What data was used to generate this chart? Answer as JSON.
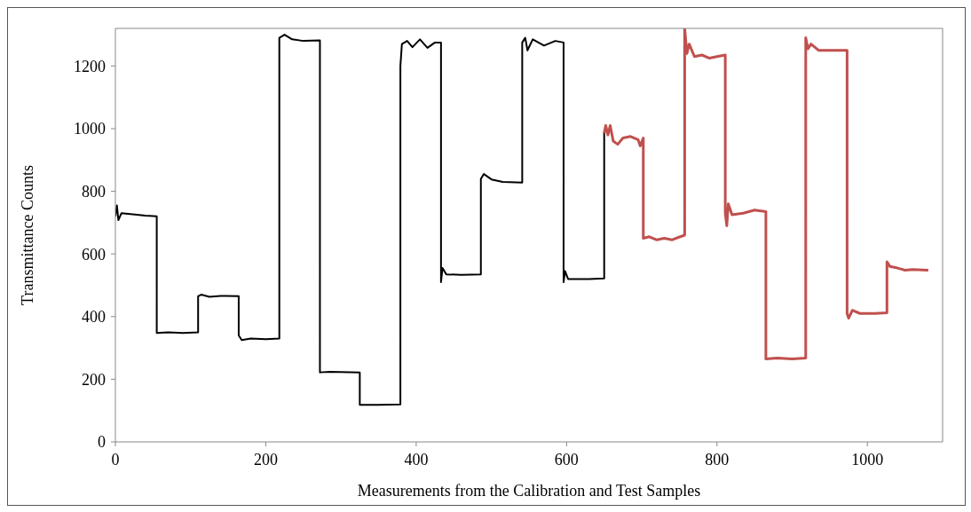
{
  "chart_data": {
    "type": "line",
    "xlabel": "Measurements from the Calibration and Test Samples",
    "ylabel": "Transmittance Counts",
    "xlim": [
      0,
      1100
    ],
    "xticks": [
      0,
      200,
      400,
      600,
      800,
      1000
    ],
    "ylim": [
      0,
      1320
    ],
    "yticks": [
      0,
      200,
      400,
      600,
      800,
      1000,
      1200
    ],
    "marker": "none",
    "line_style": "solid",
    "series": [
      {
        "color": "#000000",
        "x": [
          0,
          2,
          4,
          8,
          20,
          40,
          55,
          55,
          70,
          90,
          110,
          110,
          114,
          125,
          140,
          164,
          164,
          168,
          180,
          200,
          218,
          218,
          225,
          235,
          250,
          272,
          272,
          285,
          325,
          325,
          350,
          379,
          379,
          381,
          388,
          395,
          405,
          415,
          425,
          433,
          433,
          435,
          440,
          460,
          486,
          486,
          490,
          500,
          515,
          541,
          541,
          545,
          548,
          555,
          570,
          585,
          596,
          596,
          598,
          602,
          630,
          650,
          650
        ],
        "values": [
          720,
          755,
          708,
          730,
          727,
          722,
          720,
          348,
          350,
          348,
          350,
          465,
          470,
          463,
          466,
          465,
          340,
          325,
          330,
          328,
          330,
          1290,
          1300,
          1285,
          1280,
          1282,
          222,
          224,
          222,
          118,
          118,
          120,
          1200,
          1270,
          1280,
          1260,
          1285,
          1258,
          1275,
          1275,
          510,
          555,
          535,
          533,
          535,
          840,
          855,
          838,
          830,
          828,
          1275,
          1290,
          1250,
          1285,
          1265,
          1280,
          1275,
          510,
          545,
          520,
          520,
          522,
          990
        ]
      },
      {
        "color": "#c0504d",
        "x": [
          650,
          652,
          655,
          658,
          662,
          668,
          675,
          685,
          695,
          698,
          702,
          702,
          710,
          720,
          730,
          740,
          757,
          757,
          760,
          763,
          770,
          780,
          790,
          800,
          811,
          811,
          813,
          815,
          820,
          835,
          850,
          865,
          865,
          880,
          900,
          918,
          918,
          921,
          925,
          935,
          950,
          973,
          973,
          975,
          980,
          990,
          1010,
          1026,
          1026,
          1030,
          1040,
          1050,
          1060,
          1081
        ],
        "values": [
          985,
          1010,
          980,
          1010,
          960,
          950,
          970,
          975,
          965,
          945,
          970,
          650,
          655,
          645,
          650,
          645,
          660,
          1320,
          1240,
          1270,
          1230,
          1235,
          1225,
          1230,
          1235,
          730,
          690,
          760,
          725,
          730,
          740,
          735,
          265,
          268,
          265,
          268,
          1290,
          1255,
          1270,
          1250,
          1250,
          1250,
          410,
          395,
          420,
          410,
          410,
          412,
          575,
          560,
          555,
          548,
          550,
          548
        ]
      }
    ]
  }
}
